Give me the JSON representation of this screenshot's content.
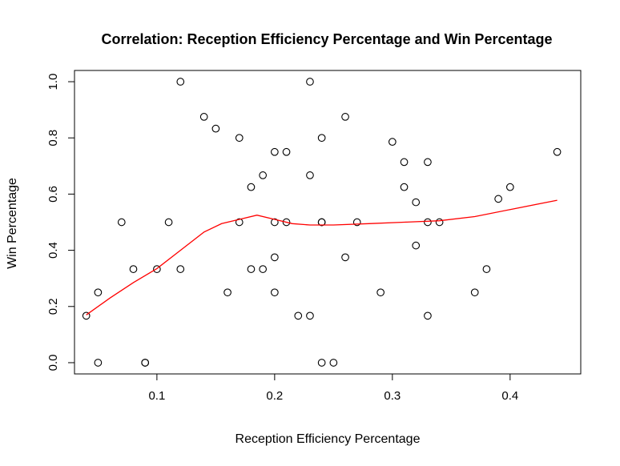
{
  "chart_data": {
    "type": "scatter",
    "title": "Correlation: Reception Efficiency Percentage and Win Percentage",
    "xlabel": "Reception Efficiency Percentage",
    "ylabel": "Win Percentage",
    "xlim": [
      0.03,
      0.46
    ],
    "ylim": [
      -0.04,
      1.04
    ],
    "xticks": [
      0.1,
      0.2,
      0.3,
      0.4
    ],
    "xtick_labels": [
      "0.1",
      "0.2",
      "0.3",
      "0.4"
    ],
    "yticks": [
      0.0,
      0.2,
      0.4,
      0.6,
      0.8,
      1.0
    ],
    "ytick_labels": [
      "0.0",
      "0.2",
      "0.4",
      "0.6",
      "0.8",
      "1.0"
    ],
    "grid": false,
    "colors": {
      "points": "#000000",
      "smoother": "#ff0000"
    },
    "points": [
      [
        0.04,
        0.167
      ],
      [
        0.05,
        0.25
      ],
      [
        0.05,
        0.0
      ],
      [
        0.07,
        0.5
      ],
      [
        0.08,
        0.333
      ],
      [
        0.09,
        0.0
      ],
      [
        0.09,
        0.0
      ],
      [
        0.1,
        0.333
      ],
      [
        0.11,
        0.5
      ],
      [
        0.12,
        1.0
      ],
      [
        0.12,
        0.333
      ],
      [
        0.14,
        0.875
      ],
      [
        0.15,
        0.833
      ],
      [
        0.16,
        0.25
      ],
      [
        0.17,
        0.8
      ],
      [
        0.17,
        0.5
      ],
      [
        0.18,
        0.625
      ],
      [
        0.18,
        0.333
      ],
      [
        0.19,
        0.667
      ],
      [
        0.19,
        0.333
      ],
      [
        0.2,
        0.75
      ],
      [
        0.2,
        0.5
      ],
      [
        0.2,
        0.375
      ],
      [
        0.2,
        0.25
      ],
      [
        0.21,
        0.75
      ],
      [
        0.21,
        0.5
      ],
      [
        0.22,
        0.167
      ],
      [
        0.23,
        1.0
      ],
      [
        0.23,
        0.667
      ],
      [
        0.23,
        0.167
      ],
      [
        0.24,
        0.8
      ],
      [
        0.24,
        0.5
      ],
      [
        0.24,
        0.5
      ],
      [
        0.24,
        0.0
      ],
      [
        0.25,
        0.0
      ],
      [
        0.26,
        0.875
      ],
      [
        0.26,
        0.375
      ],
      [
        0.27,
        0.5
      ],
      [
        0.29,
        0.25
      ],
      [
        0.3,
        0.786
      ],
      [
        0.31,
        0.714
      ],
      [
        0.31,
        0.625
      ],
      [
        0.32,
        0.571
      ],
      [
        0.32,
        0.417
      ],
      [
        0.33,
        0.714
      ],
      [
        0.33,
        0.5
      ],
      [
        0.33,
        0.167
      ],
      [
        0.34,
        0.5
      ],
      [
        0.37,
        0.25
      ],
      [
        0.38,
        0.333
      ],
      [
        0.39,
        0.583
      ],
      [
        0.4,
        0.625
      ],
      [
        0.44,
        0.75
      ]
    ],
    "smoother": [
      [
        0.04,
        0.17
      ],
      [
        0.06,
        0.23
      ],
      [
        0.08,
        0.285
      ],
      [
        0.1,
        0.335
      ],
      [
        0.12,
        0.4
      ],
      [
        0.14,
        0.465
      ],
      [
        0.155,
        0.495
      ],
      [
        0.17,
        0.51
      ],
      [
        0.185,
        0.525
      ],
      [
        0.2,
        0.51
      ],
      [
        0.215,
        0.495
      ],
      [
        0.23,
        0.49
      ],
      [
        0.25,
        0.49
      ],
      [
        0.28,
        0.495
      ],
      [
        0.31,
        0.5
      ],
      [
        0.34,
        0.505
      ],
      [
        0.37,
        0.52
      ],
      [
        0.4,
        0.545
      ],
      [
        0.44,
        0.578
      ]
    ]
  }
}
